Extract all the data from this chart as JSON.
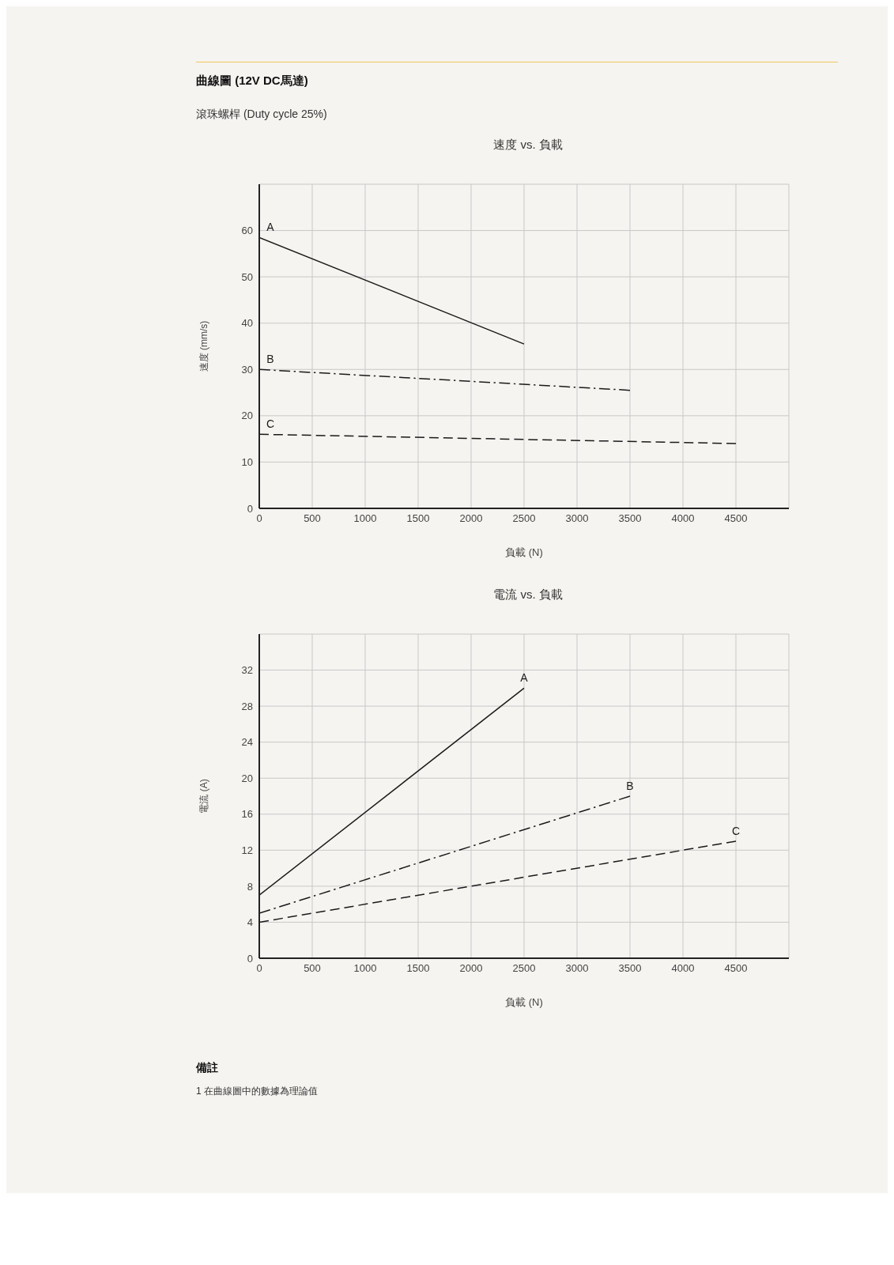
{
  "chart_data": [
    {
      "type": "line",
      "title": "速度 vs. 負載",
      "xlabel": "負載 (N)",
      "ylabel": "速度 (mm/s)",
      "annotations": [
        "曲線圖 (12V DC馬達)",
        "滾珠螺桿 (Duty cycle 25%)"
      ],
      "series": [
        {
          "name": "A",
          "color": "#1a1a1a",
          "line_style": "solid",
          "x": [
            0,
            2500
          ],
          "values": [
            58.5,
            35.5
          ]
        },
        {
          "name": "B",
          "color": "#1a1a1a",
          "line_style": "dashdot",
          "x": [
            0,
            3500
          ],
          "values": [
            30,
            25.5
          ]
        },
        {
          "name": "C",
          "color": "#1a1a1a",
          "line_style": "dashed",
          "x": [
            0,
            4500
          ],
          "values": [
            16,
            14
          ]
        }
      ],
      "xlim": [
        0,
        5000
      ],
      "xticks": [
        0,
        500,
        1000,
        1500,
        2000,
        2500,
        3000,
        3500,
        4000,
        4500
      ],
      "ylim": [
        0,
        70
      ],
      "yticks": [
        0,
        10,
        20,
        30,
        40,
        50,
        60
      ],
      "grid": true,
      "legend": false,
      "marker": "none"
    },
    {
      "type": "line",
      "title": "電流 vs. 負載",
      "xlabel": "負載 (N)",
      "ylabel": "電流 (A)",
      "annotations": [
        "備註",
        "1 在曲線圖中的數據為理論值"
      ],
      "series": [
        {
          "name": "A",
          "color": "#1a1a1a",
          "line_style": "solid",
          "x": [
            0,
            2500
          ],
          "values": [
            7,
            30
          ]
        },
        {
          "name": "B",
          "color": "#1a1a1a",
          "line_style": "dashdot",
          "x": [
            0,
            3500
          ],
          "values": [
            5,
            18
          ]
        },
        {
          "name": "C",
          "color": "#1a1a1a",
          "line_style": "dashed",
          "x": [
            0,
            4500
          ],
          "values": [
            4,
            13
          ]
        }
      ],
      "xlim": [
        0,
        5000
      ],
      "xticks": [
        0,
        500,
        1000,
        1500,
        2000,
        2500,
        3000,
        3500,
        4000,
        4500
      ],
      "ylim": [
        0,
        36
      ],
      "yticks": [
        0,
        4,
        8,
        12,
        16,
        20,
        24,
        28,
        32
      ],
      "grid": true,
      "legend": false,
      "marker": "none"
    }
  ]
}
